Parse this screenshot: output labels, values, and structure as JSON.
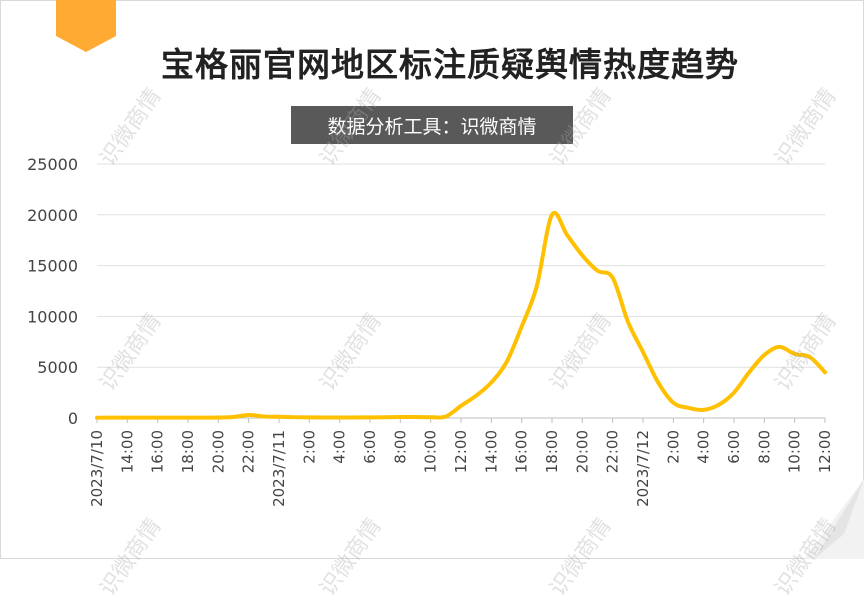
{
  "title": "宝格丽官网地区标注质疑舆情热度趋势",
  "subtitle": "数据分析工具：识微商情",
  "watermark": "识微商情",
  "colors": {
    "line": "#FFC000",
    "accent": "#FFAA33",
    "subtitle_bg": "#595959",
    "grid": "#e0e0e0"
  },
  "chart_data": {
    "type": "line",
    "title": "宝格丽官网地区标注质疑舆情热度趋势",
    "xlabel": "",
    "ylabel": "",
    "ylim": [
      0,
      25000
    ],
    "yticks": [
      "0",
      "5000",
      "10000",
      "15000",
      "20000",
      "25000"
    ],
    "x_tick_labels": [
      "2023/7/10",
      "14:00",
      "16:00",
      "18:00",
      "20:00",
      "22:00",
      "2023/7/11",
      "2:00",
      "4:00",
      "6:00",
      "8:00",
      "10:00",
      "12:00",
      "14:00",
      "16:00",
      "18:00",
      "20:00",
      "22:00",
      "2023/7/12",
      "2:00",
      "4:00",
      "6:00",
      "8:00",
      "10:00",
      "12:00"
    ],
    "grid": true,
    "legend": "none",
    "series": [
      {
        "name": "",
        "x": [
          "2023/7/10 12:00",
          "13:00",
          "14:00",
          "15:00",
          "16:00",
          "17:00",
          "18:00",
          "19:00",
          "20:00",
          "21:00",
          "22:00",
          "23:00",
          "2023/7/11 0:00",
          "1:00",
          "2:00",
          "3:00",
          "4:00",
          "5:00",
          "6:00",
          "7:00",
          "8:00",
          "9:00",
          "10:00",
          "11:00",
          "12:00",
          "13:00",
          "14:00",
          "15:00",
          "16:00",
          "17:00",
          "18:00",
          "19:00",
          "20:00",
          "21:00",
          "22:00",
          "23:00",
          "2023/7/12 0:00",
          "1:00",
          "2:00",
          "3:00",
          "4:00",
          "5:00",
          "6:00",
          "7:00",
          "8:00",
          "9:00",
          "10:00",
          "11:00",
          "12:00"
        ],
        "values": [
          30,
          40,
          40,
          40,
          40,
          40,
          40,
          40,
          50,
          100,
          300,
          150,
          120,
          80,
          60,
          50,
          50,
          50,
          60,
          70,
          100,
          100,
          80,
          150,
          1200,
          2200,
          3500,
          5500,
          9000,
          13000,
          20000,
          18000,
          16000,
          14500,
          13800,
          9500,
          6500,
          3500,
          1500,
          1000,
          800,
          1300,
          2500,
          4500,
          6200,
          7000,
          6300,
          6000,
          4500
        ]
      }
    ]
  }
}
